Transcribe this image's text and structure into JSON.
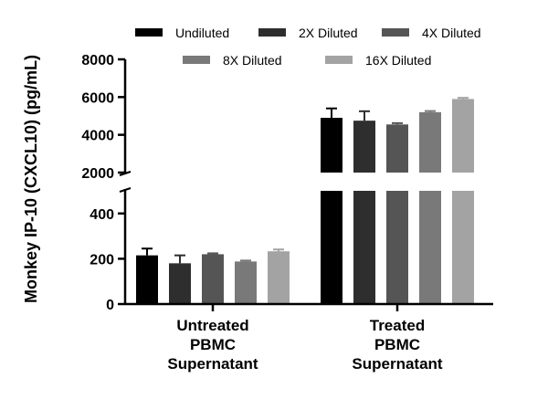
{
  "chart_data": {
    "type": "bar",
    "title": "",
    "ylabel": "Monkey IP-10 (CXCL10) (pg/mL)",
    "xlabel": "",
    "axis_break": {
      "lower_range": [
        0,
        500
      ],
      "upper_range": [
        2000,
        8000
      ]
    },
    "lower_ticks": [
      "0",
      "200",
      "400"
    ],
    "upper_ticks": [
      "2000",
      "4000",
      "6000",
      "8000"
    ],
    "categories": [
      [
        "Untreated",
        "PBMC",
        "Supernatant"
      ],
      [
        "Treated",
        "PBMC",
        "Supernatant"
      ]
    ],
    "series": [
      {
        "name": "Undiluted",
        "color": "#000000",
        "values": [
          215,
          4900
        ],
        "errors": [
          30,
          500
        ]
      },
      {
        "name": "2X Diluted",
        "color": "#2e2e2e",
        "values": [
          180,
          4750
        ],
        "errors": [
          35,
          500
        ]
      },
      {
        "name": "4X Diluted",
        "color": "#555555",
        "values": [
          220,
          4550
        ],
        "errors": [
          4,
          70
        ]
      },
      {
        "name": "8X Diluted",
        "color": "#797979",
        "values": [
          188,
          5200
        ],
        "errors": [
          4,
          60
        ]
      },
      {
        "name": "16X Diluted",
        "color": "#a3a3a3",
        "values": [
          233,
          5900
        ],
        "errors": [
          8,
          60
        ]
      }
    ],
    "legend_position": "top"
  }
}
